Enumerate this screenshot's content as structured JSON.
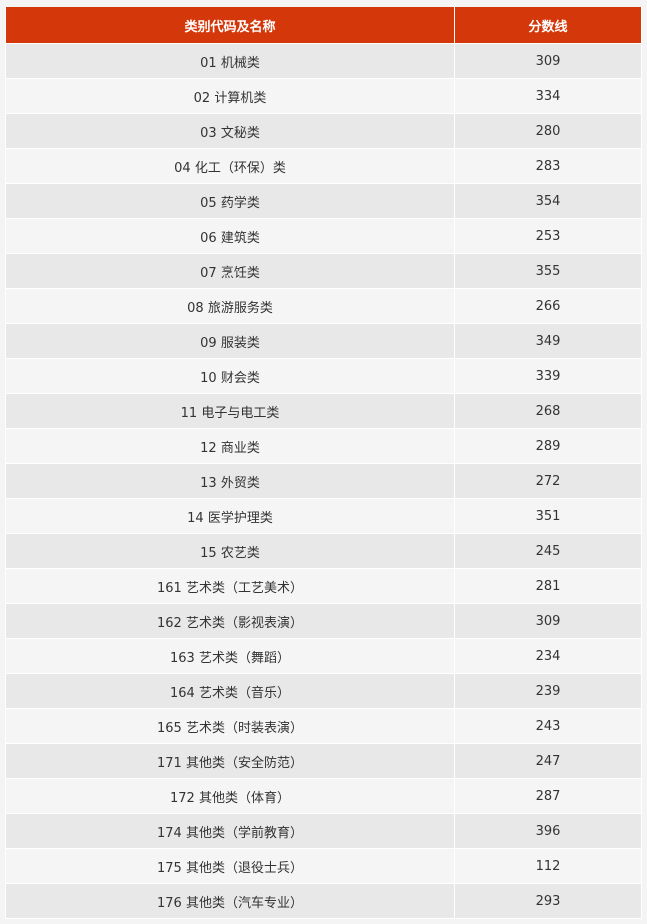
{
  "table": {
    "header_color": "#d4380a",
    "columns": [
      "类别代码及名称",
      "分数线"
    ],
    "rows": [
      [
        "01 机械类",
        "309"
      ],
      [
        "02 计算机类",
        "334"
      ],
      [
        "03 文秘类",
        "280"
      ],
      [
        "04 化工（环保）类",
        "283"
      ],
      [
        "05 药学类",
        "354"
      ],
      [
        "06 建筑类",
        "253"
      ],
      [
        "07 烹饪类",
        "355"
      ],
      [
        "08 旅游服务类",
        "266"
      ],
      [
        "09 服装类",
        "349"
      ],
      [
        "10 财会类",
        "339"
      ],
      [
        "11 电子与电工类",
        "268"
      ],
      [
        "12 商业类",
        "289"
      ],
      [
        "13 外贸类",
        "272"
      ],
      [
        "14 医学护理类",
        "351"
      ],
      [
        "15 农艺类",
        "245"
      ],
      [
        "161 艺术类（工艺美术）",
        "281"
      ],
      [
        "162 艺术类（影视表演）",
        "309"
      ],
      [
        "163 艺术类（舞蹈）",
        "234"
      ],
      [
        "164 艺术类（音乐）",
        "239"
      ],
      [
        "165 艺术类（时装表演）",
        "243"
      ],
      [
        "171 其他类（安全防范）",
        "247"
      ],
      [
        "172 其他类（体育）",
        "287"
      ],
      [
        "174 其他类（学前教育）",
        "396"
      ],
      [
        "175 其他类（退役士兵）",
        "112"
      ],
      [
        "176 其他类（汽车专业）",
        "293"
      ]
    ]
  }
}
